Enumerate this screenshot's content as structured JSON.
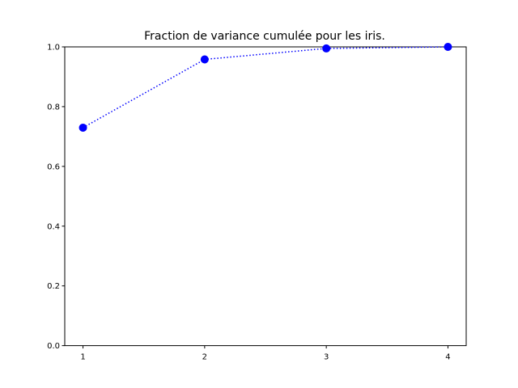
{
  "chart_data": {
    "type": "line",
    "title": "Fraction de variance cumulée pour les iris.",
    "xlabel": "",
    "ylabel": "",
    "x": [
      1,
      2,
      3,
      4
    ],
    "series": [
      {
        "values": [
          0.7296,
          0.9581,
          0.9948,
          1.0
        ],
        "color": "#0000ff",
        "line_style": "dotted",
        "marker": "circle"
      }
    ],
    "xlim": [
      0.85,
      4.15
    ],
    "ylim": [
      0,
      1
    ],
    "xticks": [
      "1",
      "2",
      "3",
      "4"
    ],
    "yticks": [
      "0.0",
      "0.2",
      "0.4",
      "0.6",
      "0.8",
      "1.0"
    ],
    "grid": false,
    "legend": "none"
  }
}
